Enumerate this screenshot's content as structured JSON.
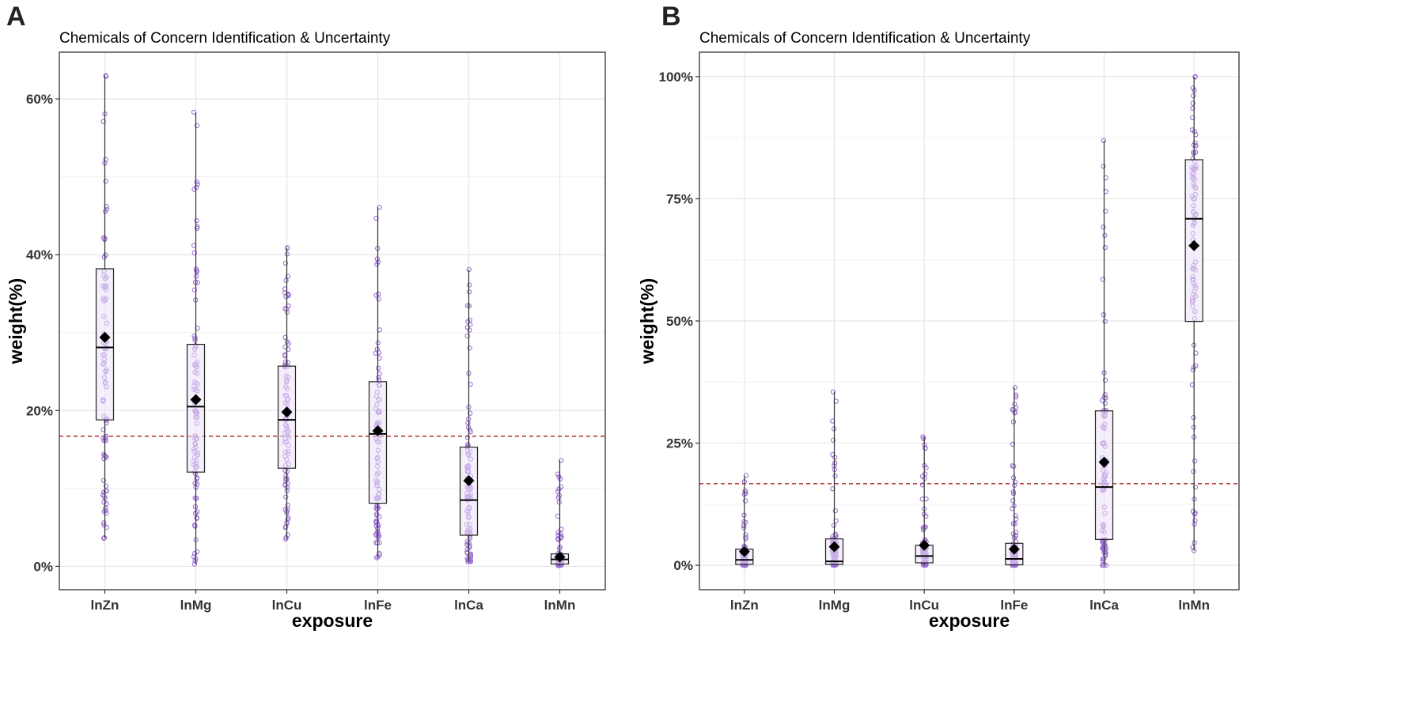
{
  "colors": {
    "point": "#9b6fd3",
    "box_fill": "#ece2f7",
    "reference_line": "#b3413f",
    "mean_marker": "#000000",
    "grid": "#e6e6e6"
  },
  "chart_data": [
    {
      "panel": "A",
      "type": "boxplot",
      "title": "Chemicals of Concern Identification & Uncertainty",
      "xlabel": "exposure",
      "ylabel": "weight(%)",
      "ylim": [
        -3,
        66
      ],
      "yticks": [
        0,
        20,
        40,
        60
      ],
      "ytick_labels": [
        "0%",
        "20%",
        "40%",
        "60%"
      ],
      "reference_line": 16.7,
      "categories": [
        "lnZn",
        "lnMg",
        "lnCu",
        "lnFe",
        "lnCa",
        "lnMn"
      ],
      "boxes": [
        {
          "min": 3.6,
          "q1": 18.8,
          "median": 28.1,
          "q3": 38.2,
          "max": 63.0,
          "mean": 29.4
        },
        {
          "min": 0.3,
          "q1": 12.1,
          "median": 20.5,
          "q3": 28.5,
          "max": 58.3,
          "mean": 21.4
        },
        {
          "min": 3.5,
          "q1": 12.6,
          "median": 18.8,
          "q3": 25.7,
          "max": 40.9,
          "mean": 19.8
        },
        {
          "min": 1.1,
          "q1": 8.1,
          "median": 17.0,
          "q3": 23.7,
          "max": 46.1,
          "mean": 17.4
        },
        {
          "min": 0.6,
          "q1": 4.0,
          "median": 8.5,
          "q3": 15.3,
          "max": 38.1,
          "mean": 11.0
        },
        {
          "min": 0.1,
          "q1": 0.3,
          "median": 0.9,
          "q3": 1.6,
          "max": 13.6,
          "mean": 1.2
        }
      ]
    },
    {
      "panel": "B",
      "type": "boxplot",
      "title": "Chemicals of Concern Identification & Uncertainty",
      "xlabel": "exposure",
      "ylabel": "weight(%)",
      "ylim": [
        -5,
        105
      ],
      "yticks": [
        0,
        25,
        50,
        75,
        100
      ],
      "ytick_labels": [
        "0%",
        "25%",
        "50%",
        "75%",
        "100%"
      ],
      "reference_line": 16.7,
      "categories": [
        "lnZn",
        "lnMg",
        "lnCu",
        "lnFe",
        "lnCa",
        "lnMn"
      ],
      "boxes": [
        {
          "min": 0.0,
          "q1": 0.2,
          "median": 1.1,
          "q3": 3.3,
          "max": 18.4,
          "mean": 2.8
        },
        {
          "min": 0.0,
          "q1": 0.2,
          "median": 0.8,
          "q3": 5.4,
          "max": 35.5,
          "mean": 3.8
        },
        {
          "min": 0.0,
          "q1": 0.5,
          "median": 1.9,
          "q3": 4.1,
          "max": 26.3,
          "mean": 4.1
        },
        {
          "min": 0.0,
          "q1": 0.1,
          "median": 1.3,
          "q3": 4.5,
          "max": 36.4,
          "mean": 3.3
        },
        {
          "min": 0.0,
          "q1": 5.3,
          "median": 16.0,
          "q3": 31.6,
          "max": 86.9,
          "mean": 21.1
        },
        {
          "min": 3.0,
          "q1": 49.9,
          "median": 70.9,
          "q3": 83.0,
          "max": 100.0,
          "mean": 65.4
        }
      ]
    }
  ]
}
